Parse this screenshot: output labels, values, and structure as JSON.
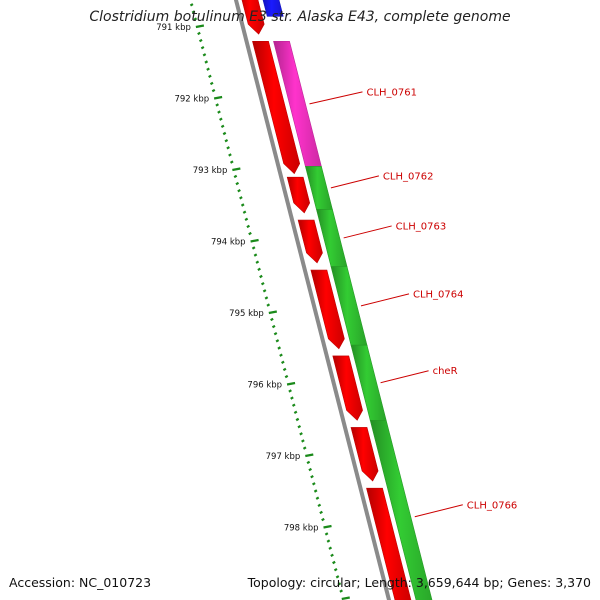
{
  "title": "Clostridium botulinum E3 str. Alaska E43, complete genome",
  "footer": {
    "accession": "Accession: NC_010723",
    "summary": "Topology: circular; Length: 3,659,644 bp; Genes: 3,370"
  },
  "colors": {
    "backbone": "#8a8a8a",
    "reverse_cds": "#ff0000",
    "forward_cds_green": "#33cc33",
    "forward_cds_pink": "#ff33cc",
    "forward_cds_blue": "#1a1aff",
    "ticks": "#1a8a1a",
    "gene_label": "#cc0000"
  },
  "ticks": [
    {
      "kbp": 791,
      "label": "791 kbp"
    },
    {
      "kbp": 792,
      "label": "792 kbp"
    },
    {
      "kbp": 793,
      "label": "793 kbp"
    },
    {
      "kbp": 794,
      "label": "794 kbp"
    },
    {
      "kbp": 795,
      "label": "795 kbp"
    },
    {
      "kbp": 796,
      "label": "796 kbp"
    },
    {
      "kbp": 797,
      "label": "797 kbp"
    },
    {
      "kbp": 798,
      "label": "798 kbp"
    }
  ],
  "forward_features": [
    {
      "start": 790.55,
      "end": 790.85,
      "color": "#1a1aff"
    },
    {
      "start": 791.2,
      "end": 792.95,
      "color": "#ff33cc",
      "label": "CLH_0761"
    },
    {
      "start": 792.95,
      "end": 793.55,
      "color": "#33cc33",
      "label": "CLH_0762"
    },
    {
      "start": 793.55,
      "end": 794.35,
      "color": "#33cc33",
      "label": "CLH_0763"
    },
    {
      "start": 794.35,
      "end": 795.45,
      "color": "#33cc33",
      "label": "CLH_0764"
    },
    {
      "start": 795.45,
      "end": 796.5,
      "color": "#33cc33",
      "label": "cheR"
    },
    {
      "start": 796.5,
      "end": 799.2,
      "color": "#33cc33",
      "label": "CLH_0766"
    }
  ],
  "reverse_features": [
    {
      "start": 790.4,
      "end": 791.1
    },
    {
      "start": 791.2,
      "end": 793.05
    },
    {
      "start": 793.1,
      "end": 793.6
    },
    {
      "start": 793.7,
      "end": 794.3
    },
    {
      "start": 794.4,
      "end": 795.5
    },
    {
      "start": 795.6,
      "end": 796.5
    },
    {
      "start": 796.6,
      "end": 797.35
    },
    {
      "start": 797.45,
      "end": 799.2
    }
  ]
}
